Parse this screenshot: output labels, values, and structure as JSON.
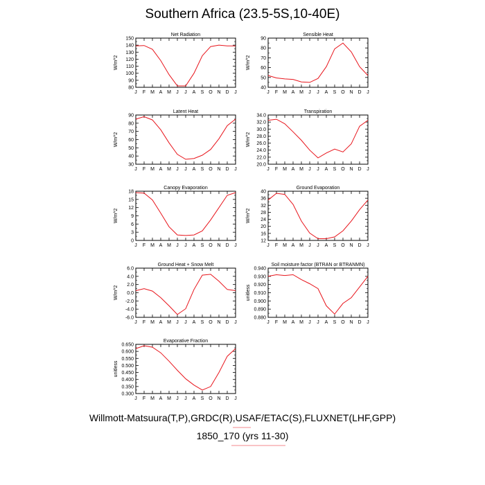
{
  "title": "Southern Africa (23.5-5S,10-40E)",
  "footer": {
    "line1": "Willmott-Matsuura(T,P),GRDC(R),USAF/ETAC(S),FLUXNET(LHF,GPP)",
    "line2": "1850_170 (yrs 11-30)"
  },
  "colors": {
    "line": "#e8141b",
    "axis": "#000000"
  },
  "month_labels": [
    "J",
    "F",
    "M",
    "A",
    "M",
    "J",
    "J",
    "A",
    "S",
    "O",
    "N",
    "D",
    "J"
  ],
  "chart_data": [
    {
      "type": "line",
      "title": "Net Radiation",
      "ylabel": "W/m^2",
      "ylim": [
        80,
        150
      ],
      "yticks": [
        "80",
        "90",
        "100",
        "110",
        "120",
        "130",
        "140",
        "150"
      ],
      "x": [
        "J",
        "F",
        "M",
        "A",
        "M",
        "J",
        "J",
        "A",
        "S",
        "O",
        "N",
        "D",
        "J"
      ],
      "values": [
        139,
        139.5,
        134,
        118,
        98,
        82,
        82,
        100,
        125,
        138,
        140,
        139,
        139
      ]
    },
    {
      "type": "line",
      "title": "Sensible Heat",
      "ylabel": "W/m^2",
      "ylim": [
        40,
        90
      ],
      "yticks": [
        "40",
        "50",
        "60",
        "70",
        "80",
        "90"
      ],
      "x": [
        "J",
        "F",
        "M",
        "A",
        "M",
        "J",
        "J",
        "A",
        "S",
        "O",
        "N",
        "D",
        "J"
      ],
      "values": [
        52,
        49.5,
        48.5,
        48,
        45.5,
        45,
        49,
        61,
        79,
        85,
        76,
        61,
        52
      ]
    },
    {
      "type": "line",
      "title": "Latent Heat",
      "ylabel": "W/m^2",
      "ylim": [
        30,
        90
      ],
      "yticks": [
        "30",
        "40",
        "50",
        "60",
        "70",
        "80",
        "90"
      ],
      "x": [
        "J",
        "F",
        "M",
        "A",
        "M",
        "J",
        "J",
        "A",
        "S",
        "O",
        "N",
        "D",
        "J"
      ],
      "values": [
        85,
        88,
        84,
        72,
        56,
        42,
        36,
        37,
        41,
        48,
        61,
        77,
        85
      ]
    },
    {
      "type": "line",
      "title": "Transpiration",
      "ylabel": "W/m^2",
      "ylim": [
        20,
        34
      ],
      "yticks": [
        "20.0",
        "22.0",
        "24.0",
        "26.0",
        "28.0",
        "30.0",
        "32.0",
        "34.0"
      ],
      "x": [
        "J",
        "F",
        "M",
        "A",
        "M",
        "J",
        "J",
        "A",
        "S",
        "O",
        "N",
        "D",
        "J"
      ],
      "values": [
        32.5,
        32.8,
        31.5,
        29.2,
        26.8,
        24.0,
        21.8,
        23.2,
        24.3,
        23.5,
        25.8,
        30.8,
        32.5
      ]
    },
    {
      "type": "line",
      "title": "Canopy Evaporation",
      "ylabel": "W/m^2",
      "ylim": [
        0,
        18
      ],
      "yticks": [
        "0",
        "3",
        "6",
        "9",
        "12",
        "15",
        "18"
      ],
      "x": [
        "J",
        "F",
        "M",
        "A",
        "M",
        "J",
        "J",
        "A",
        "S",
        "O",
        "N",
        "D",
        "J"
      ],
      "values": [
        17.5,
        17.3,
        14.8,
        10.0,
        5.0,
        2.0,
        1.8,
        2.0,
        3.5,
        7.5,
        12.0,
        16.5,
        17.5
      ]
    },
    {
      "type": "line",
      "title": "Ground Evaporation",
      "ylabel": "W/m^2",
      "ylim": [
        12,
        40
      ],
      "yticks": [
        "12",
        "16",
        "20",
        "24",
        "28",
        "32",
        "36",
        "40"
      ],
      "x": [
        "J",
        "F",
        "M",
        "A",
        "M",
        "J",
        "J",
        "A",
        "S",
        "O",
        "N",
        "D",
        "J"
      ],
      "values": [
        35,
        38.8,
        38.2,
        32.5,
        23,
        16.2,
        13,
        13,
        14,
        17.5,
        23,
        29.5,
        35
      ]
    },
    {
      "type": "line",
      "title": "Ground Heat + Snow Melt",
      "ylabel": "W/m^2",
      "ylim": [
        -6,
        6
      ],
      "yticks": [
        "-6.0",
        "-4.0",
        "-2.0",
        "0.0",
        "2.0",
        "4.0",
        "6.0"
      ],
      "x": [
        "J",
        "F",
        "M",
        "A",
        "M",
        "J",
        "J",
        "A",
        "S",
        "O",
        "N",
        "D",
        "J"
      ],
      "values": [
        0.5,
        1.0,
        0.4,
        -1.2,
        -3.2,
        -5.3,
        -3.9,
        0.8,
        4.3,
        4.5,
        2.8,
        0.8,
        0.5
      ]
    },
    {
      "type": "line",
      "title": "Soil moisture factor (BTRAN or BTRANMN)",
      "ylabel": "unitless",
      "ylim": [
        0.88,
        0.94
      ],
      "yticks": [
        "0.880",
        "0.890",
        "0.900",
        "0.910",
        "0.920",
        "0.930",
        "0.940"
      ],
      "x": [
        "J",
        "F",
        "M",
        "A",
        "M",
        "J",
        "J",
        "A",
        "S",
        "O",
        "N",
        "D",
        "J"
      ],
      "values": [
        0.93,
        0.932,
        0.931,
        0.932,
        0.926,
        0.921,
        0.915,
        0.894,
        0.884,
        0.897,
        0.904,
        0.917,
        0.93
      ]
    },
    {
      "type": "line",
      "title": "Evaporative Fraction",
      "ylabel": "unitless",
      "ylim": [
        0.3,
        0.65
      ],
      "yticks": [
        "0.300",
        "0.350",
        "0.400",
        "0.450",
        "0.500",
        "0.550",
        "0.600",
        "0.650"
      ],
      "x": [
        "J",
        "F",
        "M",
        "A",
        "M",
        "J",
        "J",
        "A",
        "S",
        "O",
        "N",
        "D",
        "J"
      ],
      "values": [
        0.62,
        0.64,
        0.63,
        0.59,
        0.53,
        0.465,
        0.405,
        0.36,
        0.325,
        0.35,
        0.45,
        0.565,
        0.62
      ]
    }
  ]
}
